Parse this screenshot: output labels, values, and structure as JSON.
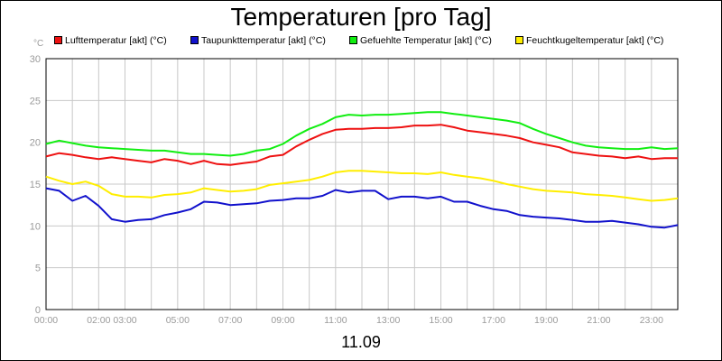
{
  "chart_data": {
    "type": "line",
    "title": "Temperaturen [pro Tag]",
    "unit_label": "°C",
    "xlabel": "11.09",
    "ylim": [
      0,
      30
    ],
    "y_ticks": [
      "0",
      "5",
      "10",
      "15",
      "20",
      "25",
      "30"
    ],
    "x_ticks": [
      "00:00",
      "02:00",
      "03:00",
      "05:00",
      "07:00",
      "09:00",
      "11:00",
      "13:00",
      "15:00",
      "17:00",
      "19:00",
      "21:00",
      "23:00"
    ],
    "x_tick_hours": [
      0,
      2,
      3,
      5,
      7,
      9,
      11,
      13,
      15,
      17,
      19,
      21,
      23
    ],
    "xlim": [
      0,
      24
    ],
    "grid": true,
    "legend_position": "top",
    "x_hours": [
      0,
      0.5,
      1,
      1.5,
      2,
      2.5,
      3,
      3.5,
      4,
      4.5,
      5,
      5.5,
      6,
      6.5,
      7,
      7.5,
      8,
      8.5,
      9,
      9.5,
      10,
      10.5,
      11,
      11.5,
      12,
      12.5,
      13,
      13.5,
      14,
      14.5,
      15,
      15.5,
      16,
      16.5,
      17,
      17.5,
      18,
      18.5,
      19,
      19.5,
      20,
      20.5,
      21,
      21.5,
      22,
      22.5,
      23,
      23.5,
      24
    ],
    "series": [
      {
        "name": "Lufttemperatur [akt] (°C)",
        "color": "#ee1111",
        "values": [
          18.3,
          18.7,
          18.5,
          18.2,
          18.0,
          18.2,
          18.0,
          17.8,
          17.6,
          18.0,
          17.8,
          17.4,
          17.8,
          17.4,
          17.3,
          17.5,
          17.7,
          18.3,
          18.5,
          19.5,
          20.3,
          21.0,
          21.5,
          21.6,
          21.6,
          21.7,
          21.7,
          21.8,
          22.0,
          22.0,
          22.1,
          21.8,
          21.4,
          21.2,
          21.0,
          20.8,
          20.5,
          20.0,
          19.7,
          19.4,
          18.8,
          18.6,
          18.4,
          18.3,
          18.1,
          18.3,
          18.0,
          18.1,
          18.1
        ]
      },
      {
        "name": "Taupunkttemperatur [akt] (°C)",
        "color": "#1111cc",
        "values": [
          14.5,
          14.2,
          13.0,
          13.6,
          12.4,
          10.8,
          10.5,
          10.7,
          10.8,
          11.3,
          11.6,
          12.0,
          12.9,
          12.8,
          12.5,
          12.6,
          12.7,
          13.0,
          13.1,
          13.3,
          13.3,
          13.6,
          14.3,
          14.0,
          14.2,
          14.2,
          13.2,
          13.5,
          13.5,
          13.3,
          13.5,
          12.9,
          12.9,
          12.4,
          12.0,
          11.8,
          11.3,
          11.1,
          11.0,
          10.9,
          10.7,
          10.5,
          10.5,
          10.6,
          10.4,
          10.2,
          9.9,
          9.8,
          10.1
        ]
      },
      {
        "name": "Gefuehlte Temperatur [akt] (°C)",
        "color": "#11ee11",
        "values": [
          19.8,
          20.2,
          19.9,
          19.6,
          19.4,
          19.3,
          19.2,
          19.1,
          19.0,
          19.0,
          18.8,
          18.6,
          18.6,
          18.5,
          18.4,
          18.6,
          19.0,
          19.2,
          19.8,
          20.8,
          21.6,
          22.2,
          23.0,
          23.3,
          23.2,
          23.3,
          23.3,
          23.4,
          23.5,
          23.6,
          23.6,
          23.4,
          23.2,
          23.0,
          22.8,
          22.6,
          22.3,
          21.6,
          21.0,
          20.5,
          20.0,
          19.6,
          19.4,
          19.3,
          19.2,
          19.2,
          19.4,
          19.2,
          19.3
        ]
      },
      {
        "name": "Feuchtkugeltemperatur [akt] (°C)",
        "color": "#ffee00",
        "values": [
          15.9,
          15.4,
          15.0,
          15.3,
          14.8,
          13.8,
          13.5,
          13.5,
          13.4,
          13.7,
          13.8,
          14.0,
          14.5,
          14.3,
          14.1,
          14.2,
          14.4,
          14.9,
          15.1,
          15.3,
          15.5,
          15.9,
          16.4,
          16.6,
          16.6,
          16.5,
          16.4,
          16.3,
          16.3,
          16.2,
          16.4,
          16.1,
          15.9,
          15.7,
          15.4,
          15.0,
          14.7,
          14.4,
          14.2,
          14.1,
          14.0,
          13.8,
          13.7,
          13.6,
          13.4,
          13.2,
          13.0,
          13.1,
          13.3
        ]
      }
    ]
  }
}
